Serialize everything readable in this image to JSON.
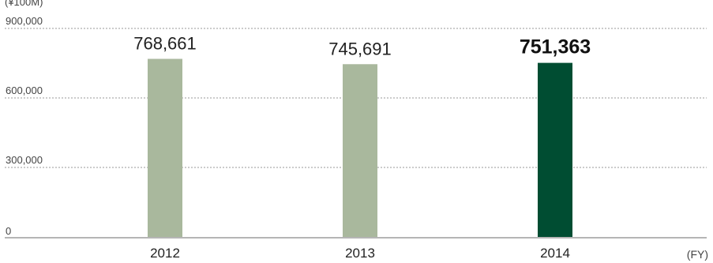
{
  "chart_data": {
    "type": "bar",
    "unit_label": "(¥100M)",
    "categories": [
      "2012",
      "2013",
      "2014"
    ],
    "values": [
      768661,
      745691,
      751363
    ],
    "value_labels": [
      "768,661",
      "745,691",
      "751,363"
    ],
    "highlight_index": 2,
    "xlabel": "(FY)",
    "ylabel": "",
    "ylim": [
      0,
      900000
    ],
    "yticks": [
      0,
      300000,
      600000,
      900000
    ],
    "ytick_labels": [
      "0",
      "300,000",
      "600,000",
      "900,000"
    ],
    "grid": true,
    "colors": {
      "bar": "#a9b89d",
      "highlight": "#004d32",
      "grid": "#9a9a9a"
    }
  }
}
